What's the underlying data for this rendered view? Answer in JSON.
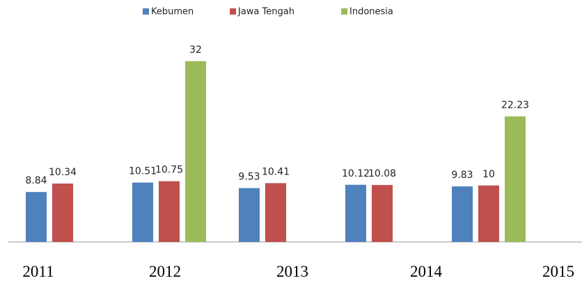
{
  "chart_data": {
    "type": "bar",
    "categories": [
      "2011",
      "2012",
      "2013",
      "2014",
      "2015"
    ],
    "series": [
      {
        "name": "Kebumen",
        "color": "#4f81bd",
        "values": [
          8.84,
          10.51,
          9.53,
          10.12,
          9.83
        ]
      },
      {
        "name": "Jawa Tengah",
        "color": "#c0504d",
        "values": [
          10.34,
          10.75,
          10.41,
          10.08,
          10
        ]
      },
      {
        "name": "Indonesia",
        "color": "#9bbb59",
        "values": [
          null,
          32,
          null,
          null,
          22.23
        ]
      }
    ]
  }
}
